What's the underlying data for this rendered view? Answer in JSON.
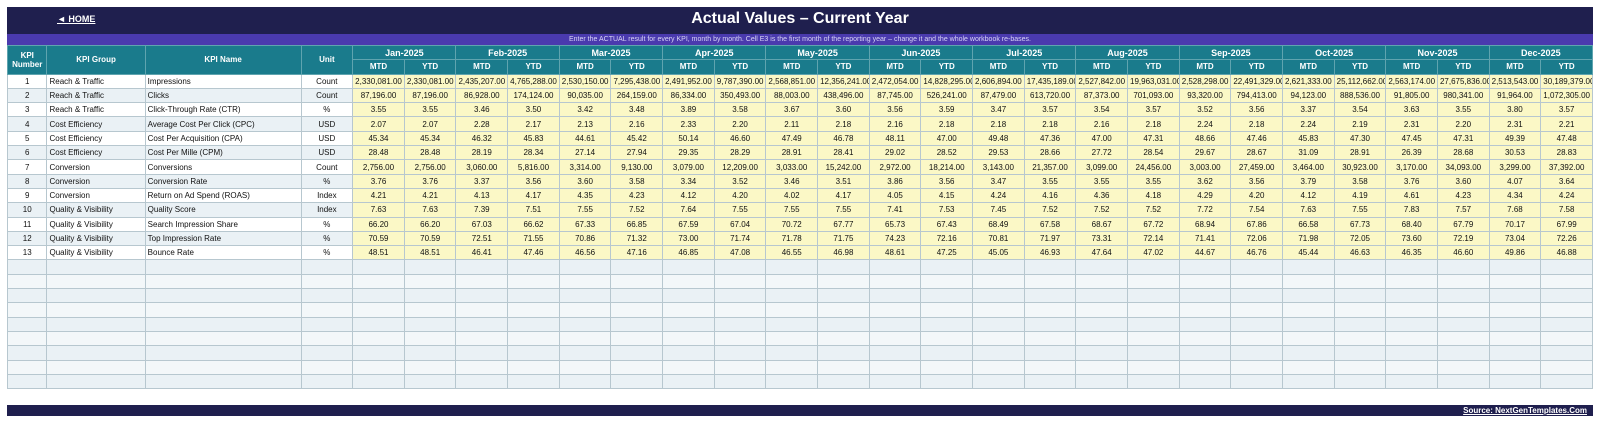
{
  "header": {
    "home_label": "◄ HOME",
    "title": "Actual Values  –  Current Year",
    "subtitle": "Enter the ACTUAL result for every KPI, month by month. Cell E3 is the first month of the reporting year – change it and the whole workbook re-bases."
  },
  "columns": {
    "kpi_number": "KPI Number",
    "kpi_group": "KPI Group",
    "kpi_name": "KPI Name",
    "unit": "Unit",
    "mtd": "MTD",
    "ytd": "YTD"
  },
  "months": [
    "Jan-2025",
    "Feb-2025",
    "Mar-2025",
    "Apr-2025",
    "May-2025",
    "Jun-2025",
    "Jul-2025",
    "Aug-2025",
    "Sep-2025",
    "Oct-2025",
    "Nov-2025",
    "Dec-2025"
  ],
  "rows": [
    {
      "num": "1",
      "group": "Reach & Traffic",
      "name": "Impressions",
      "unit": "Count",
      "vals": [
        "2,330,081.00",
        "2,330,081.00",
        "2,435,207.00",
        "4,765,288.00",
        "2,530,150.00",
        "7,295,438.00",
        "2,491,952.00",
        "9,787,390.00",
        "2,568,851.00",
        "12,356,241.00",
        "2,472,054.00",
        "14,828,295.00",
        "2,606,894.00",
        "17,435,189.00",
        "2,527,842.00",
        "19,963,031.00",
        "2,528,298.00",
        "22,491,329.00",
        "2,621,333.00",
        "25,112,662.00",
        "2,563,174.00",
        "27,675,836.00",
        "2,513,543.00",
        "30,189,379.00"
      ]
    },
    {
      "num": "2",
      "group": "Reach & Traffic",
      "name": "Clicks",
      "unit": "Count",
      "vals": [
        "87,196.00",
        "87,196.00",
        "86,928.00",
        "174,124.00",
        "90,035.00",
        "264,159.00",
        "86,334.00",
        "350,493.00",
        "88,003.00",
        "438,496.00",
        "87,745.00",
        "526,241.00",
        "87,479.00",
        "613,720.00",
        "87,373.00",
        "701,093.00",
        "93,320.00",
        "794,413.00",
        "94,123.00",
        "888,536.00",
        "91,805.00",
        "980,341.00",
        "91,964.00",
        "1,072,305.00"
      ]
    },
    {
      "num": "3",
      "group": "Reach & Traffic",
      "name": "Click-Through Rate (CTR)",
      "unit": "%",
      "vals": [
        "3.55",
        "3.55",
        "3.46",
        "3.50",
        "3.42",
        "3.48",
        "3.89",
        "3.58",
        "3.67",
        "3.60",
        "3.56",
        "3.59",
        "3.47",
        "3.57",
        "3.54",
        "3.57",
        "3.52",
        "3.56",
        "3.37",
        "3.54",
        "3.63",
        "3.55",
        "3.80",
        "3.57"
      ]
    },
    {
      "num": "4",
      "group": "Cost Efficiency",
      "name": "Average Cost Per Click (CPC)",
      "unit": "USD",
      "vals": [
        "2.07",
        "2.07",
        "2.28",
        "2.17",
        "2.13",
        "2.16",
        "2.33",
        "2.20",
        "2.11",
        "2.18",
        "2.16",
        "2.18",
        "2.18",
        "2.18",
        "2.16",
        "2.18",
        "2.24",
        "2.18",
        "2.24",
        "2.19",
        "2.31",
        "2.20",
        "2.31",
        "2.21"
      ]
    },
    {
      "num": "5",
      "group": "Cost Efficiency",
      "name": "Cost Per Acquisition (CPA)",
      "unit": "USD",
      "vals": [
        "45.34",
        "45.34",
        "46.32",
        "45.83",
        "44.61",
        "45.42",
        "50.14",
        "46.60",
        "47.49",
        "46.78",
        "48.11",
        "47.00",
        "49.48",
        "47.36",
        "47.00",
        "47.31",
        "48.66",
        "47.46",
        "45.83",
        "47.30",
        "47.45",
        "47.31",
        "49.39",
        "47.48"
      ]
    },
    {
      "num": "6",
      "group": "Cost Efficiency",
      "name": "Cost Per Mille (CPM)",
      "unit": "USD",
      "vals": [
        "28.48",
        "28.48",
        "28.19",
        "28.34",
        "27.14",
        "27.94",
        "29.35",
        "28.29",
        "28.91",
        "28.41",
        "29.02",
        "28.52",
        "29.53",
        "28.66",
        "27.72",
        "28.54",
        "29.67",
        "28.67",
        "31.09",
        "28.91",
        "26.39",
        "28.68",
        "30.53",
        "28.83"
      ]
    },
    {
      "num": "7",
      "group": "Conversion",
      "name": "Conversions",
      "unit": "Count",
      "vals": [
        "2,756.00",
        "2,756.00",
        "3,060.00",
        "5,816.00",
        "3,314.00",
        "9,130.00",
        "3,079.00",
        "12,209.00",
        "3,033.00",
        "15,242.00",
        "2,972.00",
        "18,214.00",
        "3,143.00",
        "21,357.00",
        "3,099.00",
        "24,456.00",
        "3,003.00",
        "27,459.00",
        "3,464.00",
        "30,923.00",
        "3,170.00",
        "34,093.00",
        "3,299.00",
        "37,392.00"
      ]
    },
    {
      "num": "8",
      "group": "Conversion",
      "name": "Conversion Rate",
      "unit": "%",
      "vals": [
        "3.76",
        "3.76",
        "3.37",
        "3.56",
        "3.60",
        "3.58",
        "3.34",
        "3.52",
        "3.46",
        "3.51",
        "3.86",
        "3.56",
        "3.47",
        "3.55",
        "3.55",
        "3.55",
        "3.62",
        "3.56",
        "3.79",
        "3.58",
        "3.76",
        "3.60",
        "4.07",
        "3.64"
      ]
    },
    {
      "num": "9",
      "group": "Conversion",
      "name": "Return on Ad Spend (ROAS)",
      "unit": "Index",
      "vals": [
        "4.21",
        "4.21",
        "4.13",
        "4.17",
        "4.35",
        "4.23",
        "4.12",
        "4.20",
        "4.02",
        "4.17",
        "4.05",
        "4.15",
        "4.24",
        "4.16",
        "4.36",
        "4.18",
        "4.29",
        "4.20",
        "4.12",
        "4.19",
        "4.61",
        "4.23",
        "4.34",
        "4.24"
      ]
    },
    {
      "num": "10",
      "group": "Quality & Visibility",
      "name": "Quality Score",
      "unit": "Index",
      "vals": [
        "7.63",
        "7.63",
        "7.39",
        "7.51",
        "7.55",
        "7.52",
        "7.64",
        "7.55",
        "7.55",
        "7.55",
        "7.41",
        "7.53",
        "7.45",
        "7.52",
        "7.52",
        "7.52",
        "7.72",
        "7.54",
        "7.63",
        "7.55",
        "7.83",
        "7.57",
        "7.68",
        "7.58"
      ]
    },
    {
      "num": "11",
      "group": "Quality & Visibility",
      "name": "Search Impression Share",
      "unit": "%",
      "vals": [
        "66.20",
        "66.20",
        "67.03",
        "66.62",
        "67.33",
        "66.85",
        "67.59",
        "67.04",
        "70.72",
        "67.77",
        "65.73",
        "67.43",
        "68.49",
        "67.58",
        "68.67",
        "67.72",
        "68.94",
        "67.86",
        "66.58",
        "67.73",
        "68.40",
        "67.79",
        "70.17",
        "67.99"
      ]
    },
    {
      "num": "12",
      "group": "Quality & Visibility",
      "name": "Top Impression Rate",
      "unit": "%",
      "vals": [
        "70.59",
        "70.59",
        "72.51",
        "71.55",
        "70.86",
        "71.32",
        "73.00",
        "71.74",
        "71.78",
        "71.75",
        "74.23",
        "72.16",
        "70.81",
        "71.97",
        "73.31",
        "72.14",
        "71.41",
        "72.06",
        "71.98",
        "72.05",
        "73.60",
        "72.19",
        "73.04",
        "72.26"
      ]
    },
    {
      "num": "13",
      "group": "Quality & Visibility",
      "name": "Bounce Rate",
      "unit": "%",
      "vals": [
        "48.51",
        "48.51",
        "46.41",
        "47.46",
        "46.56",
        "47.16",
        "46.85",
        "47.08",
        "46.55",
        "46.98",
        "48.61",
        "47.25",
        "45.05",
        "46.93",
        "47.64",
        "47.02",
        "44.67",
        "46.76",
        "45.44",
        "46.63",
        "46.35",
        "46.60",
        "49.86",
        "46.88"
      ]
    }
  ],
  "footer": {
    "source_label": "Source: NextGenTemplates.Com"
  },
  "colors": {
    "title_bg": "#1f1f4e",
    "subtitle_bg": "#4a3aae",
    "header_bg": "#1a7b8c",
    "input_cell": "#fbf8c6"
  }
}
